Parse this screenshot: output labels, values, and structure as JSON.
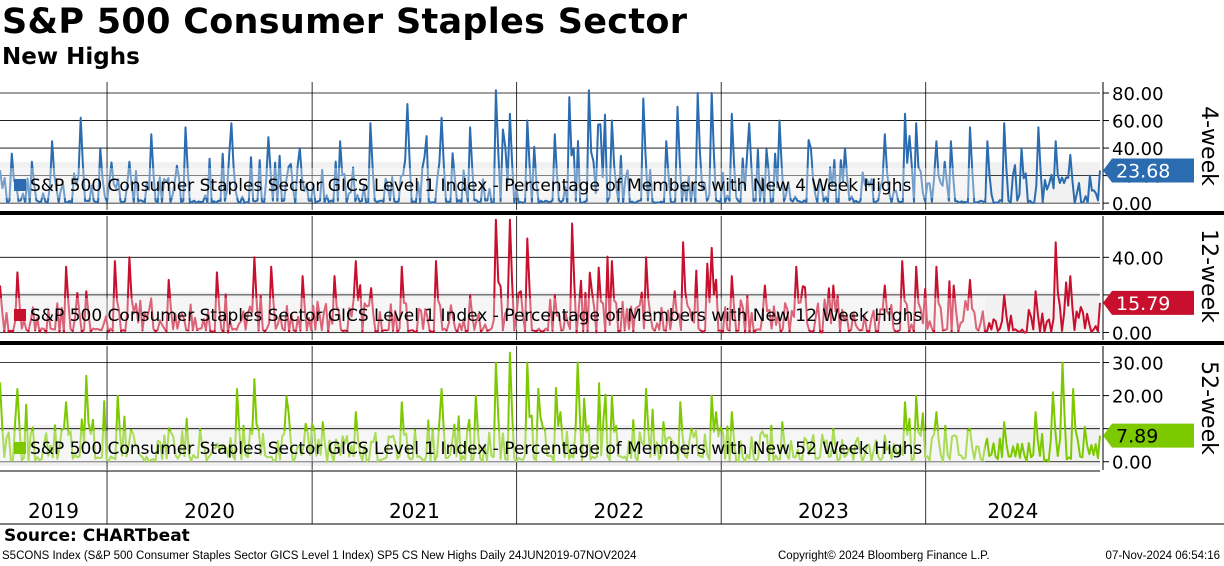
{
  "title": "S&P 500 Consumer Staples Sector",
  "subtitle": "New Highs",
  "source": "Source: CHARTbeat",
  "footer": {
    "left": "S5CONS Index (S&P 500 Consumer Staples Sector GICS Level 1 Index) SP5 CS New Highs  Daily 24JUN2019-07NOV2024",
    "middle": "Copyright© 2024 Bloomberg Finance L.P.",
    "right": "07-Nov-2024 06:54:16"
  },
  "x_axis_labels": [
    "2019",
    "2020",
    "2021",
    "2022",
    "2023",
    "2024"
  ],
  "chart_data": [
    {
      "type": "line",
      "panel_label": "4-week",
      "legend": "S&P 500 Consumer Staples Sector GICS Level 1 Index - Percentage of Members with New 4 Week Highs",
      "color": "#2b6cb0",
      "last_value": 23.68,
      "last_value_label": "23.68",
      "ylim": [
        -5,
        88
      ],
      "yticks": [
        0,
        20,
        40,
        60,
        80
      ],
      "ytick_labels": [
        "0.00",
        "20.00",
        "40.00",
        "60.00",
        "80.00"
      ],
      "x_range": [
        "2019-06-24",
        "2024-11-07"
      ],
      "peaks": [
        [
          "2019-06-24",
          24
        ],
        [
          "2019-07-15",
          36
        ],
        [
          "2019-08-20",
          30
        ],
        [
          "2019-09-25",
          45
        ],
        [
          "2019-11-15",
          62
        ],
        [
          "2019-12-20",
          40
        ],
        [
          "2020-02-10",
          30
        ],
        [
          "2020-03-20",
          50
        ],
        [
          "2020-05-20",
          55
        ],
        [
          "2020-08-10",
          58
        ],
        [
          "2020-10-15",
          48
        ],
        [
          "2020-12-10",
          40
        ],
        [
          "2021-02-20",
          45
        ],
        [
          "2021-04-15",
          58
        ],
        [
          "2021-06-20",
          72
        ],
        [
          "2021-08-20",
          62
        ],
        [
          "2021-10-10",
          55
        ],
        [
          "2021-11-25",
          82
        ],
        [
          "2021-12-20",
          65
        ],
        [
          "2022-01-20",
          60
        ],
        [
          "2022-03-10",
          50
        ],
        [
          "2022-04-05",
          77
        ],
        [
          "2022-05-10",
          82
        ],
        [
          "2022-06-20",
          60
        ],
        [
          "2022-08-15",
          76
        ],
        [
          "2022-09-25",
          45
        ],
        [
          "2022-10-15",
          70
        ],
        [
          "2022-11-20",
          80
        ],
        [
          "2022-12-15",
          80
        ],
        [
          "2023-01-20",
          65
        ],
        [
          "2023-02-20",
          58
        ],
        [
          "2023-04-15",
          60
        ],
        [
          "2023-06-10",
          40
        ],
        [
          "2023-08-10",
          40
        ],
        [
          "2023-10-20",
          50
        ],
        [
          "2023-11-25",
          65
        ],
        [
          "2023-12-15",
          58
        ],
        [
          "2024-01-20",
          45
        ],
        [
          "2024-02-15",
          45
        ],
        [
          "2024-03-20",
          55
        ],
        [
          "2024-04-20",
          45
        ],
        [
          "2024-05-20",
          58
        ],
        [
          "2024-06-20",
          40
        ],
        [
          "2024-07-20",
          55
        ],
        [
          "2024-08-20",
          45
        ],
        [
          "2024-09-15",
          35
        ],
        [
          "2024-10-20",
          20
        ],
        [
          "2024-11-07",
          23.68
        ]
      ]
    },
    {
      "type": "line",
      "panel_label": "12-week",
      "legend": "S&P 500 Consumer Staples Sector GICS Level 1 Index - Percentage of Members with New 12 Week Highs",
      "color": "#c8102e",
      "last_value": 15.79,
      "last_value_label": "15.79",
      "ylim": [
        -4,
        62
      ],
      "yticks": [
        0,
        20,
        40
      ],
      "ytick_labels": [
        "0.00",
        "",
        "40.00"
      ],
      "x_range": [
        "2019-06-24",
        "2024-11-07"
      ],
      "peaks": [
        [
          "2019-06-24",
          25
        ],
        [
          "2019-07-25",
          32
        ],
        [
          "2019-10-20",
          35
        ],
        [
          "2019-11-25",
          22
        ],
        [
          "2020-01-15",
          38
        ],
        [
          "2020-02-10",
          40
        ],
        [
          "2020-04-20",
          28
        ],
        [
          "2020-07-15",
          32
        ],
        [
          "2020-09-20",
          40
        ],
        [
          "2020-10-20",
          35
        ],
        [
          "2020-12-15",
          30
        ],
        [
          "2021-02-10",
          30
        ],
        [
          "2021-03-20",
          38
        ],
        [
          "2021-06-10",
          35
        ],
        [
          "2021-08-10",
          38
        ],
        [
          "2021-10-10",
          20
        ],
        [
          "2021-11-25",
          60
        ],
        [
          "2021-12-20",
          60
        ],
        [
          "2022-01-20",
          50
        ],
        [
          "2022-03-10",
          20
        ],
        [
          "2022-04-10",
          58
        ],
        [
          "2022-06-20",
          38
        ],
        [
          "2022-08-20",
          40
        ],
        [
          "2022-10-10",
          22
        ],
        [
          "2022-10-25",
          48
        ],
        [
          "2022-12-15",
          45
        ],
        [
          "2023-01-20",
          30
        ],
        [
          "2023-03-20",
          25
        ],
        [
          "2023-05-15",
          35
        ],
        [
          "2023-07-20",
          25
        ],
        [
          "2023-10-20",
          25
        ],
        [
          "2023-11-20",
          38
        ],
        [
          "2023-12-15",
          35
        ],
        [
          "2024-01-20",
          35
        ],
        [
          "2024-02-20",
          25
        ],
        [
          "2024-03-20",
          28
        ],
        [
          "2024-05-20",
          20
        ],
        [
          "2024-07-15",
          22
        ],
        [
          "2024-08-20",
          48
        ],
        [
          "2024-09-15",
          30
        ],
        [
          "2024-10-15",
          10
        ],
        [
          "2024-11-07",
          15.79
        ]
      ]
    },
    {
      "type": "line",
      "panel_label": "52-week",
      "legend": "S&P 500 Consumer Staples Sector GICS Level 1 Index - Percentage of Members with New 52 Week Highs",
      "color": "#7dc900",
      "last_value": 7.89,
      "last_value_label": "7.89",
      "ylim": [
        -2.5,
        35
      ],
      "yticks": [
        0,
        10,
        20,
        30
      ],
      "ytick_labels": [
        "0.00",
        "",
        "20.00",
        "30.00"
      ],
      "x_range": [
        "2019-06-24",
        "2024-11-07"
      ],
      "peaks": [
        [
          "2019-06-24",
          24
        ],
        [
          "2019-07-25",
          22
        ],
        [
          "2019-10-20",
          18
        ],
        [
          "2019-11-25",
          26
        ],
        [
          "2020-01-20",
          20
        ],
        [
          "2020-06-15",
          10
        ],
        [
          "2020-08-20",
          22
        ],
        [
          "2020-09-20",
          25
        ],
        [
          "2020-11-20",
          15
        ],
        [
          "2021-01-20",
          12
        ],
        [
          "2021-03-20",
          15
        ],
        [
          "2021-06-10",
          18
        ],
        [
          "2021-08-20",
          22
        ],
        [
          "2021-10-20",
          20
        ],
        [
          "2021-11-25",
          30
        ],
        [
          "2021-12-20",
          33
        ],
        [
          "2022-01-20",
          30
        ],
        [
          "2022-03-20",
          15
        ],
        [
          "2022-04-20",
          30
        ],
        [
          "2022-06-20",
          20
        ],
        [
          "2022-08-20",
          22
        ],
        [
          "2022-09-20",
          12
        ],
        [
          "2022-10-20",
          18
        ],
        [
          "2022-12-15",
          20
        ],
        [
          "2023-01-20",
          15
        ],
        [
          "2023-04-20",
          12
        ],
        [
          "2023-07-20",
          10
        ],
        [
          "2023-10-20",
          8
        ],
        [
          "2023-11-25",
          18
        ],
        [
          "2023-12-15",
          20
        ],
        [
          "2024-01-20",
          15
        ],
        [
          "2024-03-20",
          10
        ],
        [
          "2024-05-20",
          12
        ],
        [
          "2024-07-15",
          15
        ],
        [
          "2024-08-15",
          21
        ],
        [
          "2024-09-01",
          30
        ],
        [
          "2024-09-20",
          22
        ],
        [
          "2024-10-15",
          5
        ],
        [
          "2024-11-07",
          7.89
        ]
      ]
    }
  ]
}
